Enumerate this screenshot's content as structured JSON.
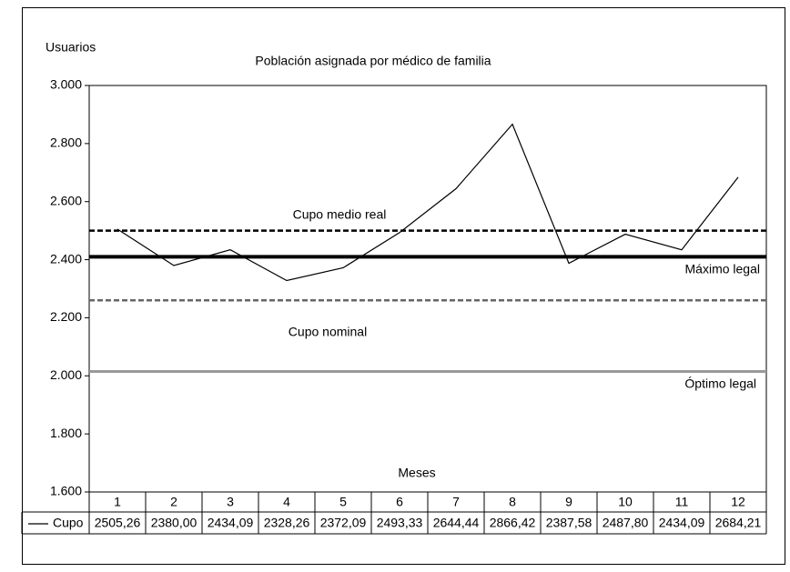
{
  "chart_data": {
    "type": "line",
    "title": "Población asignada por médico de familia",
    "y_label": "Usuarios",
    "x_label": "Meses",
    "categories": [
      "1",
      "2",
      "3",
      "4",
      "5",
      "6",
      "7",
      "8",
      "9",
      "10",
      "11",
      "12"
    ],
    "series": [
      {
        "name": "Cupo",
        "color": "#000000",
        "values": [
          2505.26,
          2380.0,
          2434.09,
          2328.26,
          2372.09,
          2493.33,
          2644.44,
          2866.42,
          2387.58,
          2487.8,
          2434.09,
          2684.21
        ],
        "value_labels": [
          "2505,26",
          "2380,00",
          "2434,09",
          "2328,26",
          "2372,09",
          "2493,33",
          "2644,44",
          "2866,42",
          "2387,58",
          "2487,80",
          "2434,09",
          "2684,21"
        ]
      }
    ],
    "reference_lines": [
      {
        "name": "Cupo medio real",
        "value": 2500,
        "color": "#000000",
        "style": "dashed"
      },
      {
        "name": "Máximo legal",
        "value": 2410,
        "color": "#000000",
        "style": "solid"
      },
      {
        "name": "Cupo nominal",
        "value": 2260,
        "color": "#666666",
        "style": "dashed"
      },
      {
        "name": "Óptimo legal",
        "value": 2015,
        "color": "#999999",
        "style": "solid"
      }
    ],
    "ylim": [
      1600,
      3000
    ],
    "yticks": [
      {
        "value": 1600,
        "label": "1.600"
      },
      {
        "value": 1800,
        "label": "1.800"
      },
      {
        "value": 2000,
        "label": "2.000"
      },
      {
        "value": 2200,
        "label": "2.200"
      },
      {
        "value": 2400,
        "label": "2.400"
      },
      {
        "value": 2600,
        "label": "2.600"
      },
      {
        "value": 2800,
        "label": "2.800"
      },
      {
        "value": 3000,
        "label": "3.000"
      }
    ]
  }
}
